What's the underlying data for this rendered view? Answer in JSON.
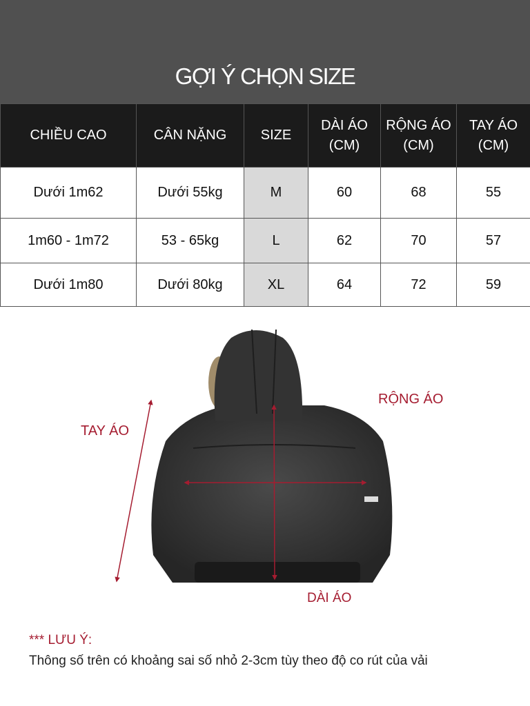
{
  "title": "GỢI Ý CHỌN SIZE",
  "table": {
    "headers": [
      "CHIỀU CAO",
      "CÂN NẶNG",
      "SIZE",
      "DÀI ÁO (CM)",
      "RỘNG ÁO (CM)",
      "TAY ÁO (CM)"
    ],
    "rows": [
      [
        "Dưới 1m62",
        "Dưới 55kg",
        "M",
        "60",
        "68",
        "55"
      ],
      [
        "1m60 - 1m72",
        "53 - 65kg",
        "L",
        "62",
        "70",
        "57"
      ],
      [
        "Dưới 1m80",
        "Dưới 80kg",
        "XL",
        "64",
        "72",
        "59"
      ]
    ]
  },
  "diagram": {
    "sleeve_label": "TAY ÁO",
    "width_label": "RỘNG ÁO",
    "length_label": "DÀI ÁO",
    "accent": "#a51c30"
  },
  "note": {
    "heading": "*** LƯU Ý:",
    "text": "Thông số trên có khoảng sai số nhỏ 2-3cm tùy theo độ co rút của vải"
  }
}
